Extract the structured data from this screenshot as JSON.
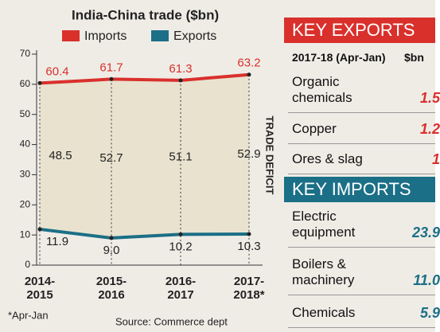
{
  "chart_data": {
    "type": "line",
    "title": "India-China trade ($bn)",
    "categories": [
      "2014-\n2015",
      "2015-\n2016",
      "2016-\n2017",
      "2017-\n2018*"
    ],
    "series": [
      {
        "name": "Imports",
        "color": "#d9302c",
        "values": [
          60.4,
          61.7,
          61.3,
          63.2
        ]
      },
      {
        "name": "Exports",
        "color": "#1b6f86",
        "values": [
          11.9,
          9.0,
          10.2,
          10.3
        ],
        "value_labels": [
          "11.9",
          "9.0",
          "10.2",
          "10.3"
        ]
      }
    ],
    "deficit": {
      "label": "TRADE DEFICIT",
      "values": [
        48.5,
        52.7,
        51.1,
        52.9
      ]
    },
    "ylim": [
      0,
      70
    ],
    "yticks": [
      0,
      10,
      20,
      30,
      40,
      50,
      60,
      70
    ],
    "note": "*Apr-Jan",
    "source": "Source: Commerce dept"
  },
  "panel": {
    "exports": {
      "title": "KEY EXPORTS",
      "period": "2017-18 (Apr-Jan)",
      "unit": "$bn",
      "rows": [
        [
          "Organic\nchemicals",
          "1.5"
        ],
        [
          "Copper",
          "1.2"
        ],
        [
          "Ores & slag",
          "1"
        ]
      ]
    },
    "imports": {
      "title": "KEY IMPORTS",
      "rows": [
        [
          "Electric\nequipment",
          "23.9"
        ],
        [
          "Boilers &\nmachinery",
          "11.0"
        ],
        [
          "Chemicals",
          "5.9"
        ]
      ]
    }
  }
}
